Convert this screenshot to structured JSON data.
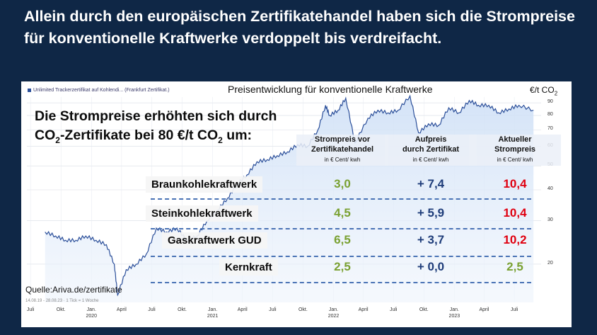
{
  "headline": "Allein durch den europäischen Zertifikatehandel haben sich die Strompreise für konventionelle Kraftwerke verdoppelt bis verdreifacht.",
  "chart_data": {
    "type": "line",
    "title": "Preisentwicklung für konventionelle Kraftwerke",
    "legend": "Unlimited Trackerzertifikat auf Kohlendi... (Frankfurt Zertifikat.)",
    "ylabel": "€/t CO2",
    "yscale": "log",
    "ylim": [
      14,
      95
    ],
    "y_ticks": [
      "90",
      "80",
      "70",
      "60",
      "50",
      "40",
      "30",
      "20"
    ],
    "x_ticks": [
      {
        "label": "Juli",
        "year": ""
      },
      {
        "label": "Okt.",
        "year": ""
      },
      {
        "label": "Jan.",
        "year": "2020"
      },
      {
        "label": "April",
        "year": ""
      },
      {
        "label": "Juli",
        "year": ""
      },
      {
        "label": "Okt.",
        "year": ""
      },
      {
        "label": "Jan.",
        "year": "2021"
      },
      {
        "label": "April",
        "year": ""
      },
      {
        "label": "Juli",
        "year": ""
      },
      {
        "label": "Okt.",
        "year": ""
      },
      {
        "label": "Jan.",
        "year": "2022"
      },
      {
        "label": "April",
        "year": ""
      },
      {
        "label": "Juli",
        "year": ""
      },
      {
        "label": "Okt.",
        "year": ""
      },
      {
        "label": "Jan.",
        "year": "2023"
      },
      {
        "label": "April",
        "year": ""
      },
      {
        "label": "Juli",
        "year": ""
      }
    ],
    "series": [
      {
        "x": [
          "2019-08-14",
          "2019-09-15",
          "2019-10-15",
          "2019-11-15",
          "2019-12-15",
          "2020-01-15",
          "2020-02-15",
          "2020-03-10",
          "2020-03-20",
          "2020-04-15",
          "2020-05-15",
          "2020-06-15",
          "2020-07-15",
          "2020-08-15",
          "2020-09-15",
          "2020-10-15",
          "2020-11-15",
          "2020-12-15",
          "2021-01-15",
          "2021-02-15",
          "2021-03-15",
          "2021-04-15",
          "2021-05-15",
          "2021-06-15",
          "2021-07-15",
          "2021-08-15",
          "2021-09-15",
          "2021-10-15",
          "2021-11-15",
          "2021-12-08",
          "2021-12-20",
          "2022-01-15",
          "2022-02-07",
          "2022-03-07",
          "2022-04-15",
          "2022-05-15",
          "2022-06-15",
          "2022-07-15",
          "2022-08-20",
          "2022-09-15",
          "2022-10-15",
          "2022-11-15",
          "2022-12-15",
          "2023-01-15",
          "2023-02-15",
          "2023-03-15",
          "2023-04-15",
          "2023-05-15",
          "2023-06-15",
          "2023-07-15",
          "2023-08-28"
        ],
        "values": [
          27,
          26,
          25,
          25,
          26,
          25,
          24,
          20,
          15,
          19,
          20,
          22,
          28,
          27,
          28,
          25,
          26,
          30,
          33,
          37,
          42,
          46,
          52,
          53,
          55,
          57,
          61,
          60,
          70,
          88,
          80,
          84,
          94,
          62,
          78,
          84,
          82,
          84,
          96,
          68,
          74,
          73,
          86,
          82,
          92,
          88,
          88,
          82,
          85,
          88,
          84
        ]
      }
    ]
  },
  "subtitle": {
    "line1": "Die Strompreise erhöhten sich durch",
    "line2_pre": "CO",
    "line2_sub": "2",
    "line2_mid": "-Zertifikate bei 80 €/t CO",
    "line2_sub2": "2",
    "line2_post": " um:"
  },
  "columns": [
    {
      "line1": "Strompreis vor",
      "line2": "Zertifikatehandel",
      "unit": "in € Cent/ kwh"
    },
    {
      "line1": "Aufpreis",
      "line2": "durch Zertifikat",
      "unit": "in € Cent/ kwh"
    },
    {
      "line1": "Aktueller",
      "line2": "Strompreis",
      "unit": "in € Cent/ kwh"
    }
  ],
  "rows": [
    {
      "label": "Braunkohlekraftwerk",
      "before": "3,0",
      "surcharge": "+ 7,4",
      "current": "10,4"
    },
    {
      "label": "Steinkohlekraftwerk",
      "before": "4,5",
      "surcharge": "+ 5,9",
      "current": "10,4"
    },
    {
      "label": "Gaskraftwerk GUD",
      "before": "6,5",
      "surcharge": "+ 3,7",
      "current": "10,2"
    },
    {
      "label": "Kernkraft",
      "before": "2,5",
      "surcharge": "+ 0,0",
      "current": "2,5"
    }
  ],
  "source": "Quelle:Ariva.de/zertifikate",
  "footnote": "14.08.19 - 28.08.23 · 1 Tick = 1 Woche",
  "colors": {
    "background": "#0f2746",
    "line": "#2b4f9a",
    "area": "#cfe0f6",
    "before": "#7aa132",
    "surcharge": "#1f3d7a",
    "current": "#e00010"
  }
}
